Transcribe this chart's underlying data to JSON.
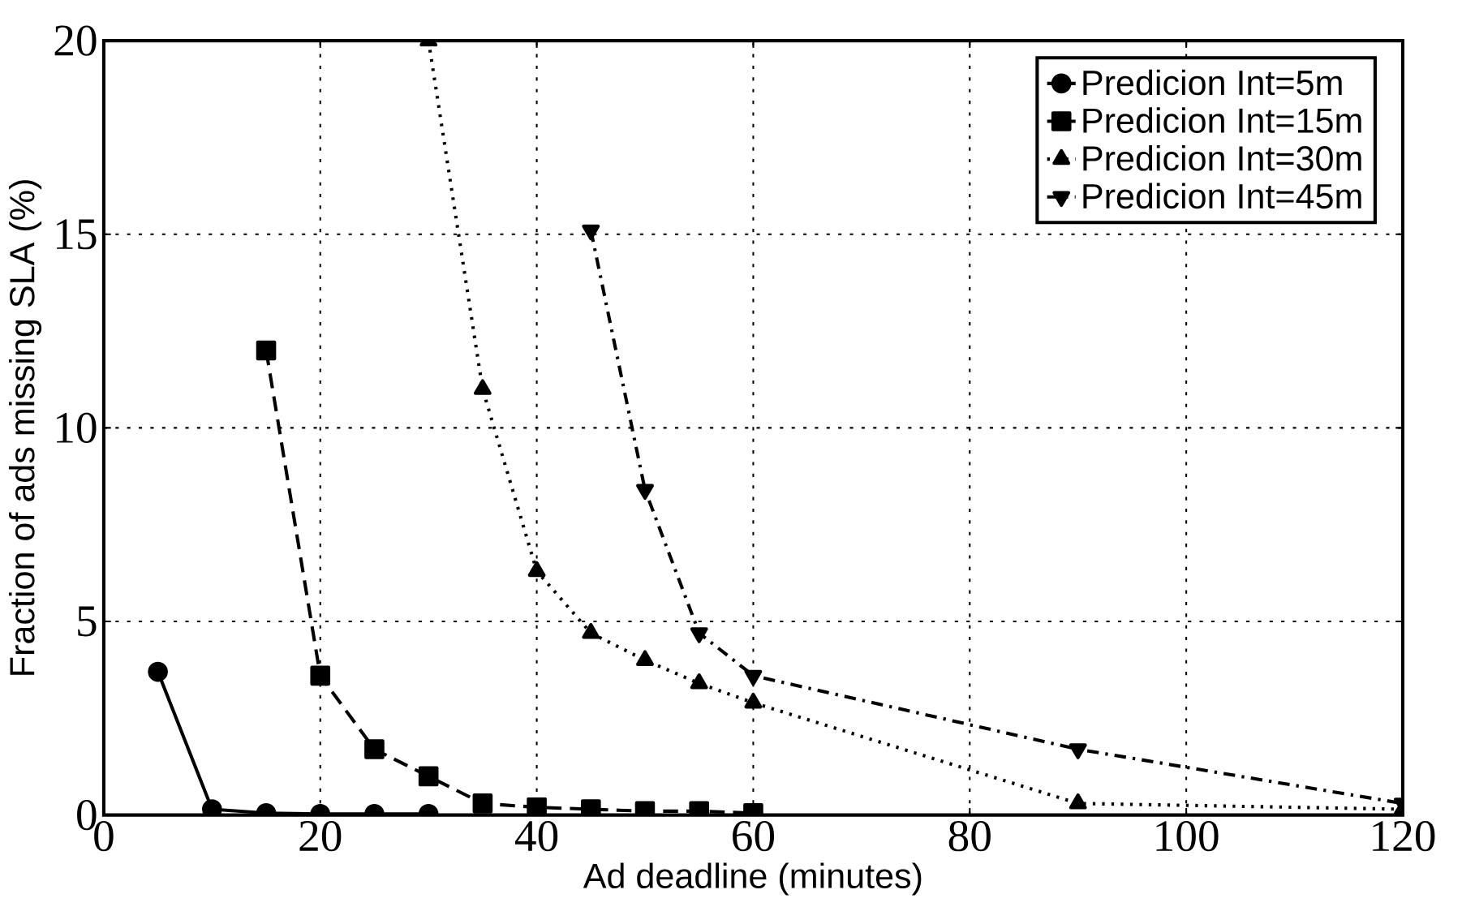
{
  "chart_data": {
    "type": "line",
    "xlabel": "Ad deadline (minutes)",
    "ylabel": "Fraction of ads missing SLA (%)",
    "xlim": [
      0,
      120
    ],
    "ylim": [
      0,
      20
    ],
    "xticks": [
      0,
      20,
      40,
      60,
      80,
      100,
      120
    ],
    "yticks": [
      0,
      5,
      10,
      15,
      20
    ],
    "grid": true,
    "legend": "top right",
    "series": [
      {
        "name": "Predicion Int=5m",
        "color": "#000000",
        "marker": "circle",
        "line_style": "solid",
        "x": [
          5,
          10,
          15,
          20,
          25,
          30
        ],
        "values": [
          3.7,
          0.15,
          0.05,
          0.03,
          0.03,
          0.03
        ]
      },
      {
        "name": "Predicion Int=15m",
        "color": "#000000",
        "marker": "square",
        "line_style": "dashed",
        "x": [
          15,
          20,
          25,
          30,
          35,
          40,
          45,
          50,
          55,
          60
        ],
        "values": [
          12.0,
          3.6,
          1.7,
          1.0,
          0.3,
          0.2,
          0.15,
          0.1,
          0.1,
          0.05
        ]
      },
      {
        "name": "Predicion Int=30m",
        "color": "#000000",
        "marker": "triangle",
        "line_style": "dotted",
        "x": [
          30,
          35,
          40,
          45,
          50,
          55,
          60,
          90,
          120
        ],
        "values": [
          20,
          11.0,
          6.3,
          4.7,
          4.0,
          3.4,
          2.9,
          0.3,
          0.15
        ]
      },
      {
        "name": "Predicion Int=45m",
        "color": "#000000",
        "marker": "triangle-down",
        "line_style": "dashdot",
        "x": [
          45,
          50,
          55,
          60,
          90,
          120
        ],
        "values": [
          15.1,
          8.4,
          4.7,
          3.6,
          1.7,
          0.3
        ]
      }
    ]
  }
}
